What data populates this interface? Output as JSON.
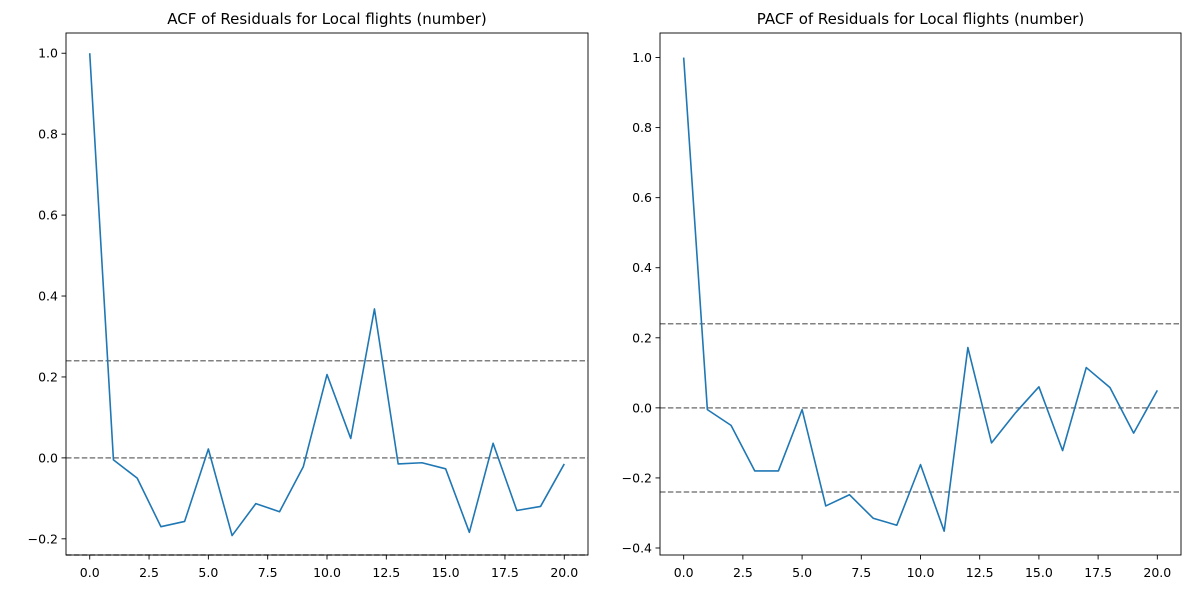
{
  "chart_data": [
    {
      "type": "line",
      "title": "ACF of Residuals for Local flights (number)",
      "xlabel": "",
      "ylabel": "",
      "xlim": [
        -1,
        21
      ],
      "ylim": [
        -0.24,
        1.05
      ],
      "x_ticks": [
        0.0,
        2.5,
        5.0,
        7.5,
        10.0,
        12.5,
        15.0,
        17.5,
        20.0
      ],
      "x_tick_labels": [
        "0.0",
        "2.5",
        "5.0",
        "7.5",
        "10.0",
        "12.5",
        "15.0",
        "17.5",
        "20.0"
      ],
      "y_ticks": [
        -0.2,
        0.0,
        0.2,
        0.4,
        0.6,
        0.8,
        1.0
      ],
      "y_tick_labels": [
        "−0.2",
        "0.0",
        "0.2",
        "0.4",
        "0.6",
        "0.8",
        "1.0"
      ],
      "grid": false,
      "line_color": "#1f77b4",
      "reference_lines": [
        0.24,
        0.0,
        -0.24
      ],
      "reference_color": "#808080",
      "x": [
        0,
        1,
        2,
        3,
        4,
        5,
        6,
        7,
        8,
        9,
        10,
        11,
        12,
        13,
        14,
        15,
        16,
        17,
        18,
        19,
        20
      ],
      "values": [
        1.0,
        -0.005,
        -0.05,
        -0.17,
        -0.157,
        0.022,
        -0.192,
        -0.113,
        -0.133,
        -0.022,
        0.206,
        0.048,
        0.368,
        -0.015,
        -0.012,
        -0.027,
        -0.184,
        0.036,
        -0.13,
        -0.12,
        -0.015
      ]
    },
    {
      "type": "line",
      "title": "PACF of Residuals for Local flights (number)",
      "xlabel": "",
      "ylabel": "",
      "xlim": [
        -1,
        21
      ],
      "ylim": [
        -0.42,
        1.07
      ],
      "x_ticks": [
        0.0,
        2.5,
        5.0,
        7.5,
        10.0,
        12.5,
        15.0,
        17.5,
        20.0
      ],
      "x_tick_labels": [
        "0.0",
        "2.5",
        "5.0",
        "7.5",
        "10.0",
        "12.5",
        "15.0",
        "17.5",
        "20.0"
      ],
      "y_ticks": [
        -0.4,
        -0.2,
        0.0,
        0.2,
        0.4,
        0.6,
        0.8,
        1.0
      ],
      "y_tick_labels": [
        "−0.4",
        "−0.2",
        "0.0",
        "0.2",
        "0.4",
        "0.6",
        "0.8",
        "1.0"
      ],
      "grid": false,
      "line_color": "#1f77b4",
      "reference_lines": [
        0.24,
        0.0,
        -0.24
      ],
      "reference_color": "#808080",
      "x": [
        0,
        1,
        2,
        3,
        4,
        5,
        6,
        7,
        8,
        9,
        10,
        11,
        12,
        13,
        14,
        15,
        16,
        17,
        18,
        19,
        20
      ],
      "values": [
        1.0,
        -0.005,
        -0.05,
        -0.18,
        -0.18,
        -0.005,
        -0.28,
        -0.248,
        -0.315,
        -0.335,
        -0.162,
        -0.352,
        0.172,
        -0.1,
        -0.015,
        0.06,
        -0.122,
        0.115,
        0.058,
        -0.072,
        0.05
      ]
    }
  ]
}
